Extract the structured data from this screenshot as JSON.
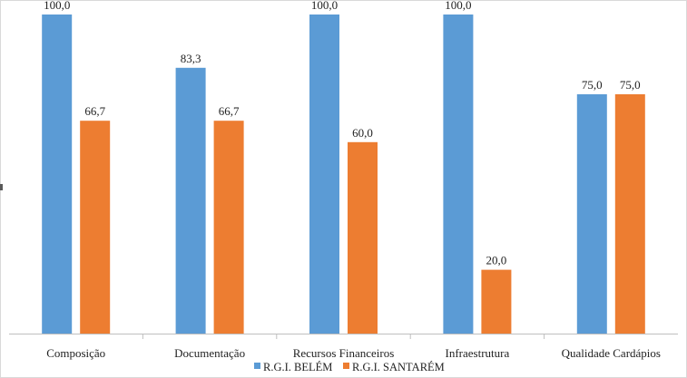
{
  "chart_data": {
    "type": "bar",
    "title": "",
    "xlabel": "",
    "ylabel": "",
    "ylim": [
      0,
      100
    ],
    "grid": false,
    "legend_position": "bottom",
    "categories": [
      "Composição",
      "Documentação",
      "Recursos Financeiros",
      "Infraestrutura",
      "Qualidade Cardápios"
    ],
    "series": [
      {
        "name": "R.G.I. BELÉM",
        "color": "#5b9bd5",
        "values": [
          100.0,
          83.3,
          100.0,
          100.0,
          75.0
        ]
      },
      {
        "name": "R.G.I. SANTARÉM",
        "color": "#ed7d31",
        "values": [
          66.7,
          66.7,
          60.0,
          20.0,
          75.0
        ]
      }
    ],
    "data_labels": [
      [
        "100,0",
        "83,3",
        "100,0",
        "100,0",
        "75,0"
      ],
      [
        "66,7",
        "66,7",
        "60,0",
        "20,0",
        "75,0"
      ]
    ]
  }
}
